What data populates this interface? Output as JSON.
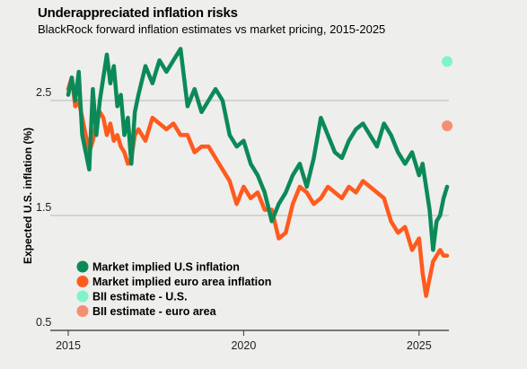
{
  "header": {
    "title": "Underappreciated inflation risks",
    "subtitle": "BlackRock forward inflation estimates vs market pricing, 2015-2025"
  },
  "chart_data": {
    "type": "line",
    "title": "Underappreciated inflation risks",
    "subtitle": "BlackRock forward inflation estimates vs market pricing, 2015-2025",
    "xlabel": "",
    "ylabel": "Expected U.S. inflation (%)",
    "xlim": [
      2015,
      2025.85
    ],
    "ylim": [
      0.5,
      3.0
    ],
    "x_ticks": [
      "2015",
      "2020",
      "2025"
    ],
    "y_ticks": [
      "0.5",
      "1.5",
      "2.5"
    ],
    "grid": "horizontal",
    "legend_position": "bottom-left",
    "colors": {
      "market_us": "#0b8a58",
      "market_eu": "#ff5a1e",
      "bii_us": "#7ff5c7",
      "bii_eu": "#f58f72"
    },
    "series": [
      {
        "name": "Market implied U.S inflation",
        "x": [
          2015.0,
          2015.1,
          2015.2,
          2015.3,
          2015.4,
          2015.5,
          2015.6,
          2015.7,
          2015.8,
          2015.9,
          2016.0,
          2016.1,
          2016.2,
          2016.3,
          2016.4,
          2016.5,
          2016.6,
          2016.7,
          2016.8,
          2016.9,
          2017.0,
          2017.2,
          2017.4,
          2017.6,
          2017.8,
          2018.0,
          2018.2,
          2018.4,
          2018.6,
          2018.8,
          2019.0,
          2019.2,
          2019.4,
          2019.6,
          2019.8,
          2020.0,
          2020.2,
          2020.4,
          2020.6,
          2020.8,
          2021.0,
          2021.2,
          2021.4,
          2021.6,
          2021.8,
          2022.0,
          2022.2,
          2022.4,
          2022.6,
          2022.8,
          2023.0,
          2023.2,
          2023.4,
          2023.6,
          2023.8,
          2024.0,
          2024.2,
          2024.4,
          2024.6,
          2024.8,
          2025.0,
          2025.1,
          2025.2,
          2025.3,
          2025.4,
          2025.5,
          2025.6,
          2025.7,
          2025.8
        ],
        "values": [
          2.55,
          2.7,
          2.5,
          2.75,
          2.2,
          2.05,
          1.9,
          2.6,
          2.2,
          2.5,
          2.7,
          2.9,
          2.65,
          2.8,
          2.45,
          2.55,
          2.2,
          2.35,
          1.95,
          2.4,
          2.55,
          2.8,
          2.65,
          2.85,
          2.75,
          2.85,
          2.95,
          2.45,
          2.6,
          2.4,
          2.5,
          2.6,
          2.5,
          2.2,
          2.1,
          2.15,
          1.95,
          1.85,
          1.7,
          1.45,
          1.6,
          1.7,
          1.85,
          1.95,
          1.75,
          2.0,
          2.35,
          2.2,
          2.05,
          2.0,
          2.15,
          2.25,
          2.3,
          2.2,
          2.1,
          2.3,
          2.2,
          2.05,
          1.95,
          2.05,
          1.85,
          1.95,
          1.75,
          1.55,
          1.2,
          1.45,
          1.5,
          1.65,
          1.75
        ]
      },
      {
        "name": "Market implied euro area inflation",
        "x": [
          2015.0,
          2015.1,
          2015.2,
          2015.3,
          2015.4,
          2015.5,
          2015.6,
          2015.7,
          2015.8,
          2015.9,
          2016.0,
          2016.1,
          2016.2,
          2016.3,
          2016.4,
          2016.5,
          2016.6,
          2016.7,
          2016.8,
          2016.9,
          2017.0,
          2017.2,
          2017.4,
          2017.6,
          2017.8,
          2018.0,
          2018.2,
          2018.4,
          2018.6,
          2018.8,
          2019.0,
          2019.2,
          2019.4,
          2019.6,
          2019.8,
          2020.0,
          2020.2,
          2020.4,
          2020.6,
          2020.8,
          2021.0,
          2021.2,
          2021.4,
          2021.6,
          2021.8,
          2022.0,
          2022.2,
          2022.4,
          2022.6,
          2022.8,
          2023.0,
          2023.2,
          2023.4,
          2023.6,
          2023.8,
          2024.0,
          2024.2,
          2024.4,
          2024.6,
          2024.8,
          2025.0,
          2025.1,
          2025.2,
          2025.3,
          2025.4,
          2025.5,
          2025.6,
          2025.7,
          2025.8
        ],
        "values": [
          2.6,
          2.7,
          2.45,
          2.5,
          2.35,
          2.2,
          2.05,
          2.15,
          2.3,
          2.4,
          2.35,
          2.2,
          2.3,
          2.15,
          2.2,
          2.1,
          2.05,
          1.95,
          2.0,
          2.2,
          2.25,
          2.15,
          2.35,
          2.3,
          2.25,
          2.3,
          2.2,
          2.2,
          2.05,
          2.1,
          2.1,
          2.0,
          1.9,
          1.8,
          1.6,
          1.75,
          1.65,
          1.7,
          1.55,
          1.55,
          1.3,
          1.35,
          1.6,
          1.75,
          1.7,
          1.6,
          1.65,
          1.75,
          1.7,
          1.65,
          1.75,
          1.7,
          1.8,
          1.75,
          1.7,
          1.65,
          1.45,
          1.35,
          1.4,
          1.2,
          1.3,
          1.0,
          0.8,
          0.95,
          1.1,
          1.15,
          1.2,
          1.15,
          1.15
        ]
      },
      {
        "name": "BII estimate - U.S.",
        "x": [
          2025.8
        ],
        "values": [
          2.84
        ]
      },
      {
        "name": "BII estimate - euro area",
        "x": [
          2025.8
        ],
        "values": [
          2.28
        ]
      }
    ]
  }
}
